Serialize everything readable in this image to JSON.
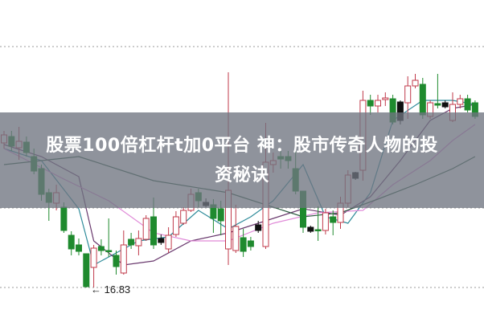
{
  "banner": {
    "title_line1": "股票100倍杠杆t加0平台 神：股市传奇人物的投",
    "title_line2": "资秘诀"
  },
  "chart_data": {
    "type": "candlestick",
    "title": "",
    "xlabel": "",
    "ylabel": "",
    "ylim": [
      14.68,
      34.73
    ],
    "grid": "horizontal dotted",
    "colors": {
      "up": "#c0394a",
      "down": "#1f8a2e",
      "neutral": "#111111",
      "ma_teal": "#2e8b9a",
      "ma_purple": "#6a3a6e",
      "ma_pink": "#e08ad8",
      "ma_green": "#2c5a40"
    },
    "low_annotation": "16.83",
    "candles": [
      [
        25.83,
        26.58,
        25.48,
        26.33
      ],
      [
        26.23,
        26.58,
        25.33,
        25.63
      ],
      [
        25.53,
        26.83,
        24.78,
        25.93
      ],
      [
        25.88,
        26.23,
        24.98,
        25.23
      ],
      [
        24.98,
        25.48,
        23.88,
        24.08
      ],
      [
        24.23,
        24.48,
        22.23,
        22.63
      ],
      [
        22.73,
        22.98,
        20.98,
        22.13
      ],
      [
        22.08,
        23.23,
        21.63,
        22.73
      ],
      [
        21.83,
        22.13,
        20.23,
        20.38
      ],
      [
        20.08,
        20.33,
        18.83,
        19.23
      ],
      [
        19.48,
        19.88,
        18.83,
        19.08
      ],
      [
        18.93,
        18.93,
        16.83,
        16.88
      ],
      [
        18.08,
        19.48,
        16.83,
        19.28
      ],
      [
        19.38,
        19.83,
        18.83,
        19.13
      ],
      [
        19.13,
        21.13,
        18.73,
        19.08
      ],
      [
        18.83,
        19.13,
        17.63,
        18.13
      ],
      [
        17.73,
        20.38,
        17.63,
        19.48
      ],
      [
        19.83,
        20.23,
        19.23,
        19.48
      ],
      [
        19.43,
        20.38,
        18.83,
        19.88
      ],
      [
        19.83,
        21.33,
        19.73,
        21.13
      ],
      [
        21.23,
        22.43,
        19.23,
        19.48
      ],
      [
        19.88,
        20.13,
        19.48,
        19.63,
        "n"
      ],
      [
        19.23,
        20.58,
        18.98,
        20.08
      ],
      [
        20.13,
        21.58,
        19.98,
        21.23
      ],
      [
        20.83,
        21.83,
        20.73,
        21.63
      ],
      [
        21.63,
        22.98,
        21.53,
        22.63
      ],
      [
        22.73,
        22.98,
        21.83,
        22.23
      ],
      [
        22.13,
        22.38,
        21.83,
        21.93,
        "n"
      ],
      [
        21.98,
        22.33,
        20.23,
        21.13
      ],
      [
        21.73,
        22.23,
        20.08,
        20.98
      ],
      [
        19.23,
        30.23,
        18.23,
        22.88
      ],
      [
        19.13,
        21.98,
        18.98,
        20.63
      ],
      [
        19.93,
        20.48,
        18.73,
        19.08
      ],
      [
        19.73,
        19.98,
        19.13,
        19.38
      ],
      [
        20.73,
        20.98,
        20.23,
        20.38,
        "n"
      ],
      [
        19.38,
        27.08,
        19.23,
        24.63
      ],
      [
        24.48,
        25.23,
        23.98,
        24.73
      ],
      [
        24.98,
        25.33,
        24.23,
        24.83
      ],
      [
        24.98,
        25.33,
        24.23,
        24.73
      ],
      [
        24.23,
        25.58,
        22.63,
        22.83
      ],
      [
        22.83,
        22.83,
        20.23,
        20.58
      ],
      [
        20.58,
        20.68,
        20.23,
        20.33,
        "n"
      ],
      [
        20.43,
        21.88,
        19.73,
        20.38
      ],
      [
        20.38,
        21.73,
        20.13,
        21.48
      ],
      [
        21.23,
        21.63,
        20.08,
        20.88
      ],
      [
        20.88,
        22.48,
        20.48,
        22.08
      ],
      [
        22.08,
        24.13,
        21.83,
        23.83
      ],
      [
        23.98,
        24.03,
        23.53,
        23.63,
        "n"
      ],
      [
        24.13,
        29.08,
        23.48,
        28.48
      ],
      [
        28.48,
        28.83,
        27.58,
        28.13
      ],
      [
        28.13,
        28.83,
        27.73,
        28.48
      ],
      [
        28.53,
        28.98,
        28.13,
        28.63
      ],
      [
        28.58,
        28.83,
        26.98,
        27.13
      ],
      [
        28.38,
        28.48,
        26.98,
        27.23,
        "n"
      ],
      [
        28.33,
        29.98,
        27.33,
        29.38
      ],
      [
        29.38,
        30.13,
        29.23,
        29.73
      ],
      [
        29.48,
        29.88,
        27.33,
        27.58
      ],
      [
        27.48,
        28.48,
        27.33,
        28.33
      ],
      [
        28.28,
        30.13,
        27.98,
        28.18
      ],
      [
        28.33,
        28.48,
        27.98,
        28.08,
        "n"
      ],
      [
        27.23,
        28.98,
        27.13,
        28.23
      ],
      [
        28.23,
        28.83,
        27.98,
        28.58
      ],
      [
        28.58,
        28.83,
        27.73,
        27.88
      ],
      [
        28.33,
        28.48,
        27.33,
        27.48
      ]
    ],
    "moving_averages": [
      {
        "color_key": "ma_teal",
        "points": [
          [
            0,
            25.48
          ],
          [
            5,
            24.73
          ],
          [
            10,
            21.73
          ],
          [
            12,
            18.23
          ],
          [
            15,
            18.98
          ],
          [
            18,
            19.73
          ],
          [
            22,
            19.98
          ],
          [
            26,
            21.63
          ],
          [
            30,
            20.48
          ],
          [
            33,
            21.23
          ],
          [
            36,
            22.23
          ],
          [
            40,
            24.48
          ],
          [
            43,
            21.23
          ],
          [
            46,
            20.83
          ],
          [
            49,
            22.73
          ],
          [
            52,
            27.23
          ],
          [
            56,
            28.48
          ],
          [
            60,
            28.48
          ],
          [
            63,
            28.23
          ]
        ]
      },
      {
        "color_key": "ma_purple",
        "points": [
          [
            0,
            25.73
          ],
          [
            5,
            24.98
          ],
          [
            10,
            23.73
          ],
          [
            12,
            19.73
          ],
          [
            16,
            18.23
          ],
          [
            20,
            18.48
          ],
          [
            25,
            19.73
          ],
          [
            30,
            20.23
          ],
          [
            35,
            20.98
          ],
          [
            40,
            21.73
          ],
          [
            45,
            21.33
          ],
          [
            49,
            22.48
          ],
          [
            53,
            24.73
          ],
          [
            57,
            27.23
          ],
          [
            60,
            27.98
          ],
          [
            63,
            28.23
          ]
        ]
      },
      {
        "color_key": "ma_pink",
        "points": [
          [
            0,
            25.48
          ],
          [
            8,
            23.58
          ],
          [
            14,
            22.23
          ],
          [
            20,
            20.23
          ],
          [
            25,
            19.73
          ],
          [
            30,
            19.73
          ],
          [
            36,
            20.83
          ],
          [
            42,
            21.48
          ],
          [
            48,
            21.63
          ],
          [
            52,
            23.23
          ],
          [
            57,
            24.73
          ],
          [
            60,
            25.98
          ],
          [
            63,
            26.98
          ]
        ]
      },
      {
        "color_key": "ma_green",
        "points": [
          [
            0,
            24.48
          ],
          [
            10,
            24.98
          ],
          [
            20,
            23.48
          ],
          [
            30,
            22.73
          ],
          [
            40,
            21.23
          ],
          [
            45,
            21.48
          ],
          [
            50,
            22.33
          ],
          [
            55,
            23.23
          ],
          [
            60,
            24.23
          ],
          [
            63,
            24.98
          ]
        ]
      }
    ]
  }
}
